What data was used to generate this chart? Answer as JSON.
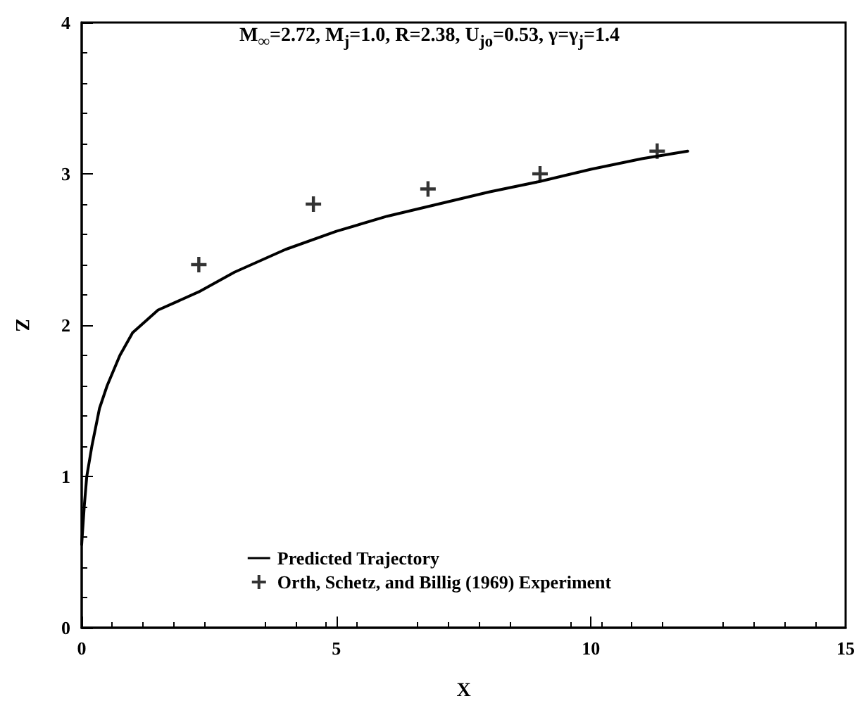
{
  "chart_data": {
    "type": "line",
    "title": "M$_{∞}$=2.72, M$_{j}$=1.0, R=2.38, U$_{jo}$=0.53, γ=γ$_{j}$=1.4",
    "xlabel": "X",
    "ylabel": "Z",
    "xlim": [
      0,
      15
    ],
    "xticks": [
      0,
      5,
      10,
      15
    ],
    "ylim": [
      0,
      4
    ],
    "yticks": [
      0,
      1,
      2,
      3,
      4
    ],
    "grid": false,
    "legend": "bottom",
    "series": [
      {
        "name": "Predicted Trajectory",
        "color": "#000000",
        "marker": "none",
        "line_style": "solid",
        "x": [
          0,
          0.05,
          0.1,
          0.2,
          0.35,
          0.5,
          0.75,
          1.0,
          1.5,
          2.3,
          3,
          4,
          5,
          6,
          7,
          8,
          9,
          10,
          11,
          11.9
        ],
        "values": [
          0.55,
          0.8,
          1.0,
          1.2,
          1.45,
          1.6,
          1.8,
          1.95,
          2.1,
          2.22,
          2.35,
          2.5,
          2.62,
          2.72,
          2.8,
          2.88,
          2.95,
          3.03,
          3.1,
          3.15
        ]
      },
      {
        "name": "Orth, Schetz, and Billig (1969) Experiment",
        "type": "scatter",
        "color": "#000000",
        "marker": "cross",
        "x": [
          2.3,
          4.55,
          6.8,
          9.0,
          11.3
        ],
        "values": [
          2.4,
          2.8,
          2.9,
          3.0,
          3.15
        ]
      }
    ]
  }
}
